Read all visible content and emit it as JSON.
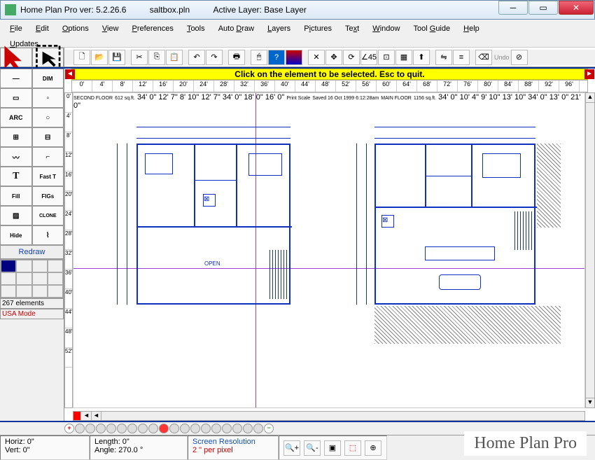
{
  "title": {
    "app": "Home Plan Pro ver:",
    "version": "5.2.26.6",
    "file": "saltbox.pln",
    "layer_label": "Active Layer:",
    "layer": "Base Layer"
  },
  "menu": [
    "File",
    "Edit",
    "Options",
    "View",
    "Preferences",
    "Tools",
    "Auto Draw",
    "Layers",
    "Pictures",
    "Text",
    "Window",
    "Tool Guide",
    "Help",
    "Updates"
  ],
  "menu_underline_idx": [
    0,
    0,
    0,
    0,
    0,
    0,
    5,
    0,
    0,
    2,
    0,
    5,
    0,
    0
  ],
  "hintbar": "Click on the element to be selected.  Esc to quit.",
  "hruler_ticks": [
    "0'",
    "4'",
    "8'",
    "12'",
    "16'",
    "20'",
    "24'",
    "28'",
    "32'",
    "36'",
    "40'",
    "44'",
    "48'",
    "52'",
    "56'",
    "60'",
    "64'",
    "68'",
    "72'",
    "76'",
    "80'",
    "84'",
    "88'",
    "92'",
    "96'"
  ],
  "vruler_ticks": [
    "0'",
    "4'",
    "8'",
    "12'",
    "16'",
    "20'",
    "24'",
    "28'",
    "32'",
    "36'",
    "40'",
    "44'",
    "48'",
    "52'"
  ],
  "left_tools": {
    "row1": [
      "arrow-select",
      "marquee-select"
    ],
    "row2": [
      "line-tool",
      "dim-tool"
    ],
    "row3": [
      "rect-tool",
      "small-rect"
    ],
    "row4": [
      "arc-tool",
      "circle-tool"
    ],
    "row5": [
      "window-tool",
      "door-tool"
    ],
    "row6": [
      "curve-tool",
      "wall-tool"
    ],
    "row7": [
      "text-tool",
      "fast-text"
    ],
    "row8": [
      "fill-tool",
      "figs-tool"
    ],
    "row9": [
      "hatch-tool",
      "clone-tool"
    ],
    "row10": [
      "hide-tool",
      "path-tool"
    ],
    "dim_label": "DIM",
    "arc_label": "ARC",
    "text_label": "T",
    "fast_label": "Fast T",
    "fill_label": "Fill",
    "figs_label": "FIGs",
    "hide_label": "Hide",
    "clone_label": "CLONE"
  },
  "redraw_label": "Redraw",
  "element_count": "267 elements",
  "mode_label": "USA Mode",
  "palette_selected": "#000080",
  "floorplans": {
    "left": {
      "title": "SECOND FLOOR",
      "area": "612 sq.ft.",
      "total_w": "34' 0\"",
      "seg_w": [
        "12' 7\"",
        "8' 10\"",
        "12' 7\""
      ],
      "total_h": "34' 0\"",
      "seg_h": [
        "18' 0\"",
        "16' 0\""
      ],
      "open_label": "OPEN",
      "scale_label": "Print Scale"
    },
    "center_note": "Saved 16 Oct 1999  6:12:28am",
    "right": {
      "title": "MAIN FLOOR",
      "area": "1156 sq.ft.",
      "total_w": "34' 0\"",
      "seg_w": [
        "10' 4\"",
        "9' 10\"",
        "13' 10\""
      ],
      "total_h": "34' 0\"",
      "seg_h": [
        "13' 0\"",
        "21' 0\""
      ]
    }
  },
  "status": {
    "horiz": "Horiz: 0\"",
    "vert": "Vert: 0\"",
    "length": "Length:  0\"",
    "angle": "Angle: 270.0 °",
    "screen_res_label": "Screen Resolution",
    "scale": "2 \" per pixel"
  },
  "undo_label": "Undo",
  "watermark": "Home Plan Pro",
  "colors": {
    "plan": "#1030c0",
    "cross": "#a040d0",
    "hint_bg": "#ffff00",
    "accent": "#003399"
  }
}
